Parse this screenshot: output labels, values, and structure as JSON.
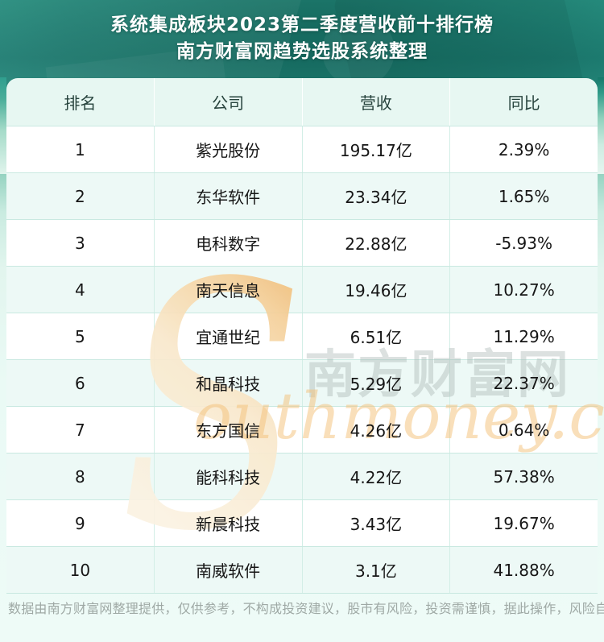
{
  "chart_data": {
    "type": "table",
    "title": "系统集成板块2023第二季度营收前十排行榜",
    "subtitle": "南方财富网趋势选股系统整理",
    "columns": [
      "排名",
      "公司",
      "营收",
      "同比"
    ],
    "rows": [
      [
        "1",
        "紫光股份",
        "195.17亿",
        "2.39%"
      ],
      [
        "2",
        "东华软件",
        "23.34亿",
        "1.65%"
      ],
      [
        "3",
        "电科数字",
        "22.88亿",
        "-5.93%"
      ],
      [
        "4",
        "南天信息",
        "19.46亿",
        "10.27%"
      ],
      [
        "5",
        "宜通世纪",
        "6.51亿",
        "11.29%"
      ],
      [
        "6",
        "和晶科技",
        "5.29亿",
        "22.37%"
      ],
      [
        "7",
        "东方国信",
        "4.26亿",
        "0.64%"
      ],
      [
        "8",
        "能科科技",
        "4.22亿",
        "57.38%"
      ],
      [
        "9",
        "新晨科技",
        "3.43亿",
        "19.67%"
      ],
      [
        "10",
        "南威软件",
        "3.1亿",
        "41.88%"
      ]
    ],
    "revenue_unit": "亿",
    "layout_hints": {
      "alternating_rows": true,
      "header_background": "#e7f7f2"
    }
  },
  "watermark": {
    "initial": "S",
    "brand_cn": "南方财富网",
    "brand_en": "outhmoney.com"
  },
  "footer": {
    "disclaimer": "数据由南方财富网整理提供，仅供参考，不构成投资建议，股市有风险，投资需谨慎，据此操作，风险自担。"
  },
  "colors": {
    "banner_teal_dark": "#1d7f73",
    "banner_teal_light": "#4fb19e",
    "table_mint_row": "#edf9f6",
    "header_mint": "#e7f7f2",
    "divider": "#c9e9e1",
    "watermark_orange": "#f4c17a",
    "footer_gray": "#9fa9a5",
    "title_white": "#ffffff"
  }
}
